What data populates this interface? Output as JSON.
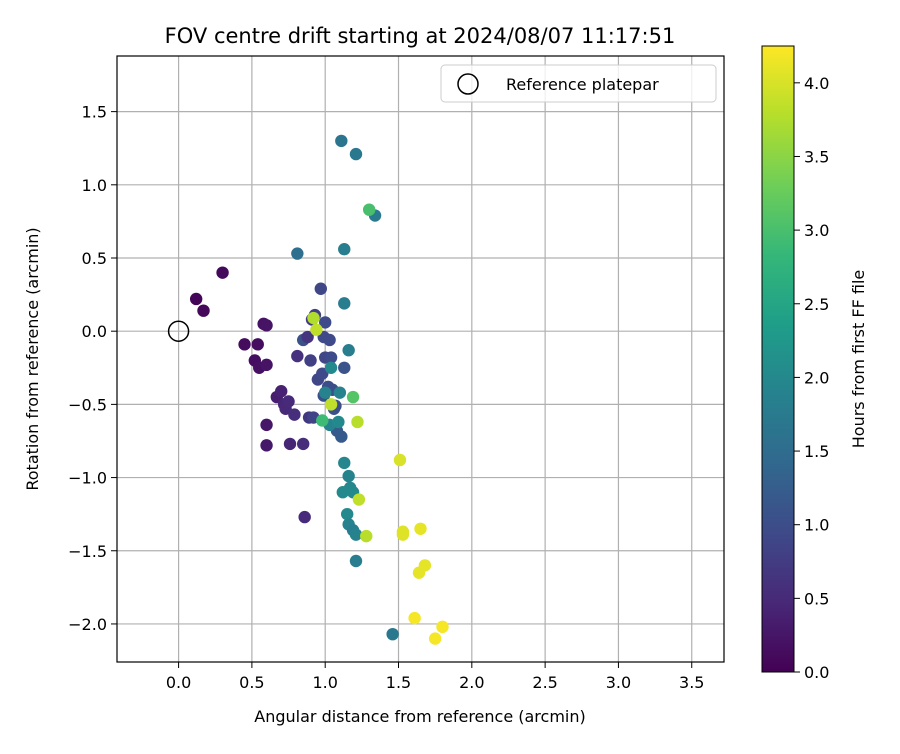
{
  "chart_data": {
    "type": "scatter",
    "title": "FOV centre drift starting at 2024/08/07 11:17:51",
    "xlabel": "Angular distance from reference (arcmin)",
    "ylabel": "Rotation from reference (arcmin)",
    "xlim": [
      -0.42,
      3.72
    ],
    "ylim": [
      -2.26,
      1.88
    ],
    "x_ticks": [
      0.0,
      0.5,
      1.0,
      1.5,
      2.0,
      2.5,
      3.0,
      3.5
    ],
    "x_tick_labels": [
      "0.0",
      "0.5",
      "1.0",
      "1.5",
      "2.0",
      "2.5",
      "3.0",
      "3.5"
    ],
    "y_ticks": [
      -2.0,
      -1.5,
      -1.0,
      -0.5,
      0.0,
      0.5,
      1.0,
      1.5
    ],
    "y_tick_labels": [
      "−2.0",
      "−1.5",
      "−1.0",
      "−0.5",
      "0.0",
      "0.5",
      "1.0",
      "1.5"
    ],
    "grid": true,
    "legend": {
      "placement": "top-right",
      "entries": [
        "Reference platepar"
      ]
    },
    "reference_point": {
      "x": 0.0,
      "y": 0.0,
      "label": "Reference platepar"
    },
    "colorbar": {
      "label": "Hours from first FF file",
      "colormap": "viridis",
      "min": 0.0,
      "max": 4.25,
      "ticks": [
        0.0,
        0.5,
        1.0,
        1.5,
        2.0,
        2.5,
        3.0,
        3.5,
        4.0
      ],
      "tick_labels": [
        "0.0",
        "0.5",
        "1.0",
        "1.5",
        "2.0",
        "2.5",
        "3.0",
        "3.5",
        "4.0"
      ]
    },
    "points": [
      {
        "x": 0.12,
        "y": 0.22,
        "c": 0.05
      },
      {
        "x": 0.17,
        "y": 0.14,
        "c": 0.08
      },
      {
        "x": 0.3,
        "y": 0.4,
        "c": 0.1
      },
      {
        "x": 0.45,
        "y": -0.09,
        "c": 0.12
      },
      {
        "x": 0.52,
        "y": -0.2,
        "c": 0.15
      },
      {
        "x": 0.54,
        "y": -0.09,
        "c": 0.15
      },
      {
        "x": 0.55,
        "y": -0.25,
        "c": 0.18
      },
      {
        "x": 0.58,
        "y": 0.05,
        "c": 0.2
      },
      {
        "x": 0.6,
        "y": 0.04,
        "c": 0.22
      },
      {
        "x": 0.6,
        "y": -0.23,
        "c": 0.22
      },
      {
        "x": 0.6,
        "y": -0.64,
        "c": 0.25
      },
      {
        "x": 0.6,
        "y": -0.78,
        "c": 0.28
      },
      {
        "x": 0.67,
        "y": -0.45,
        "c": 0.35
      },
      {
        "x": 0.7,
        "y": -0.41,
        "c": 0.4
      },
      {
        "x": 0.72,
        "y": -0.5,
        "c": 0.45
      },
      {
        "x": 0.73,
        "y": -0.53,
        "c": 0.48
      },
      {
        "x": 0.75,
        "y": -0.48,
        "c": 0.5
      },
      {
        "x": 0.76,
        "y": -0.77,
        "c": 0.45
      },
      {
        "x": 0.79,
        "y": -0.57,
        "c": 0.55
      },
      {
        "x": 0.81,
        "y": -0.17,
        "c": 0.6
      },
      {
        "x": 0.85,
        "y": -0.77,
        "c": 0.55
      },
      {
        "x": 0.86,
        "y": -1.27,
        "c": 0.5
      },
      {
        "x": 0.85,
        "y": -0.06,
        "c": 1.05
      },
      {
        "x": 0.88,
        "y": -0.04,
        "c": 0.65
      },
      {
        "x": 0.89,
        "y": -0.59,
        "c": 0.7
      },
      {
        "x": 0.91,
        "y": 0.08,
        "c": 0.75
      },
      {
        "x": 0.9,
        "y": -0.2,
        "c": 0.8
      },
      {
        "x": 0.92,
        "y": -0.59,
        "c": 0.85
      },
      {
        "x": 0.93,
        "y": 0.11,
        "c": 0.8
      },
      {
        "x": 0.95,
        "y": -0.33,
        "c": 0.9
      },
      {
        "x": 0.97,
        "y": 0.29,
        "c": 0.9
      },
      {
        "x": 0.98,
        "y": -0.29,
        "c": 0.95
      },
      {
        "x": 0.99,
        "y": -0.04,
        "c": 0.95
      },
      {
        "x": 0.99,
        "y": -0.44,
        "c": 1.0
      },
      {
        "x": 1.0,
        "y": 0.06,
        "c": 0.95
      },
      {
        "x": 1.0,
        "y": -0.18,
        "c": 0.9
      },
      {
        "x": 1.02,
        "y": -0.38,
        "c": 1.0
      },
      {
        "x": 1.03,
        "y": -0.06,
        "c": 0.95
      },
      {
        "x": 1.04,
        "y": -0.18,
        "c": 0.95
      },
      {
        "x": 1.05,
        "y": -0.4,
        "c": 1.0
      },
      {
        "x": 1.06,
        "y": -0.53,
        "c": 1.05
      },
      {
        "x": 1.07,
        "y": -0.51,
        "c": 1.0
      },
      {
        "x": 1.08,
        "y": -0.68,
        "c": 1.2
      },
      {
        "x": 1.11,
        "y": -0.72,
        "c": 1.2
      },
      {
        "x": 1.13,
        "y": -0.25,
        "c": 1.1
      },
      {
        "x": 0.81,
        "y": 0.53,
        "c": 1.55
      },
      {
        "x": 1.11,
        "y": 1.3,
        "c": 1.65
      },
      {
        "x": 1.21,
        "y": 1.21,
        "c": 1.7
      },
      {
        "x": 1.34,
        "y": 0.79,
        "c": 1.75
      },
      {
        "x": 1.13,
        "y": 0.56,
        "c": 1.8
      },
      {
        "x": 1.13,
        "y": 0.19,
        "c": 1.8
      },
      {
        "x": 1.16,
        "y": -0.13,
        "c": 1.8
      },
      {
        "x": 1.0,
        "y": -0.42,
        "c": 1.9
      },
      {
        "x": 1.04,
        "y": -0.25,
        "c": 2.0
      },
      {
        "x": 1.1,
        "y": -0.42,
        "c": 1.9
      },
      {
        "x": 1.03,
        "y": -0.64,
        "c": 1.9
      },
      {
        "x": 1.09,
        "y": -0.62,
        "c": 2.0
      },
      {
        "x": 1.13,
        "y": -0.9,
        "c": 1.95
      },
      {
        "x": 1.16,
        "y": -0.99,
        "c": 1.9
      },
      {
        "x": 1.17,
        "y": -1.07,
        "c": 1.95
      },
      {
        "x": 1.19,
        "y": -1.1,
        "c": 2.0
      },
      {
        "x": 1.12,
        "y": -1.1,
        "c": 2.0
      },
      {
        "x": 1.15,
        "y": -1.25,
        "c": 2.0
      },
      {
        "x": 1.16,
        "y": -1.32,
        "c": 1.9
      },
      {
        "x": 1.19,
        "y": -1.36,
        "c": 1.8
      },
      {
        "x": 1.21,
        "y": -1.39,
        "c": 1.9
      },
      {
        "x": 1.21,
        "y": -1.57,
        "c": 1.8
      },
      {
        "x": 1.46,
        "y": -2.07,
        "c": 1.7
      },
      {
        "x": 0.98,
        "y": -0.61,
        "c": 2.9
      },
      {
        "x": 1.3,
        "y": 0.83,
        "c": 3.0
      },
      {
        "x": 1.19,
        "y": -0.45,
        "c": 3.1
      },
      {
        "x": 0.92,
        "y": 0.09,
        "c": 3.75
      },
      {
        "x": 0.94,
        "y": 0.01,
        "c": 3.85
      },
      {
        "x": 1.04,
        "y": -0.5,
        "c": 3.85
      },
      {
        "x": 1.22,
        "y": -0.62,
        "c": 3.8
      },
      {
        "x": 1.23,
        "y": -1.15,
        "c": 3.85
      },
      {
        "x": 1.28,
        "y": -1.4,
        "c": 3.8
      },
      {
        "x": 1.51,
        "y": -0.88,
        "c": 4.0
      },
      {
        "x": 1.53,
        "y": -1.37,
        "c": 4.05
      },
      {
        "x": 1.53,
        "y": -1.39,
        "c": 4.05
      },
      {
        "x": 1.64,
        "y": -1.65,
        "c": 4.1
      },
      {
        "x": 1.65,
        "y": -1.35,
        "c": 4.1
      },
      {
        "x": 1.68,
        "y": -1.6,
        "c": 4.1
      },
      {
        "x": 1.61,
        "y": -1.96,
        "c": 4.2
      },
      {
        "x": 1.75,
        "y": -2.1,
        "c": 4.2
      },
      {
        "x": 1.8,
        "y": -2.02,
        "c": 4.2
      }
    ]
  }
}
